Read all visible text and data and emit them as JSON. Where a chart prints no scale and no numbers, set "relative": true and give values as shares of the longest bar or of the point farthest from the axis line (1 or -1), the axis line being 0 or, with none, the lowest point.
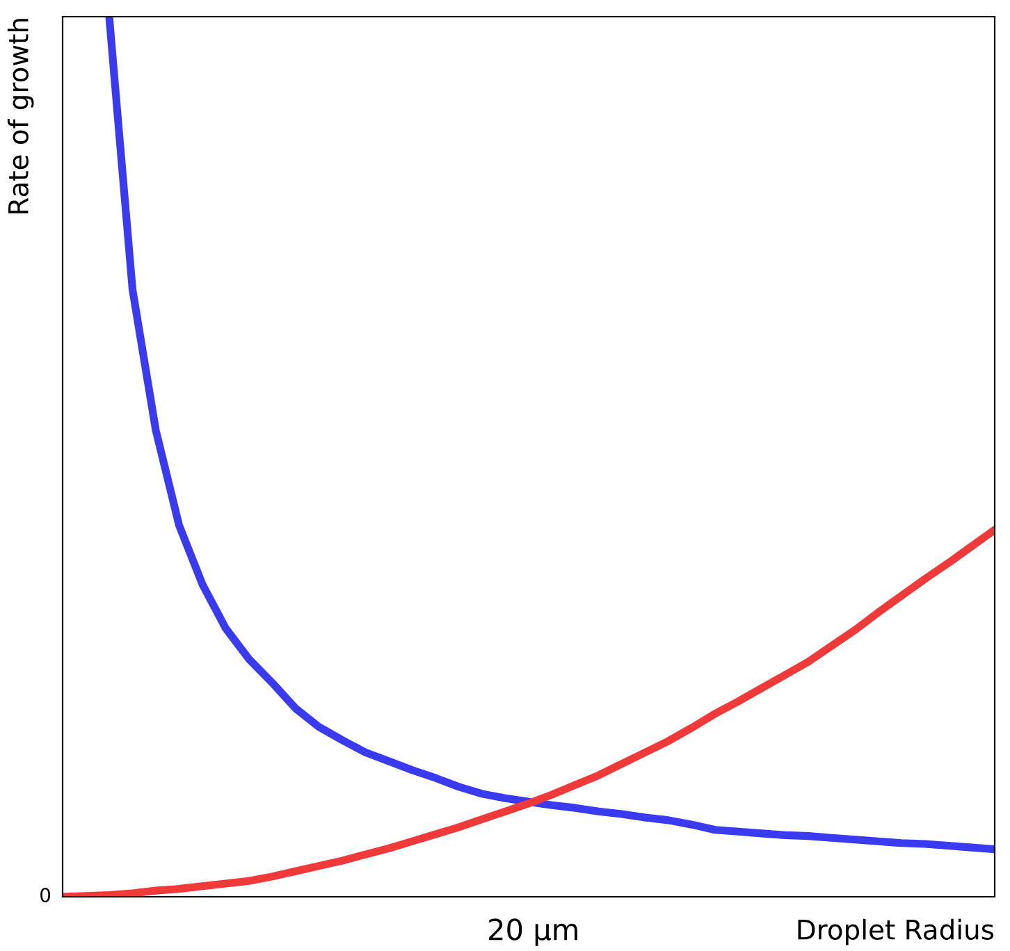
{
  "chart_data": {
    "type": "line",
    "xlabel": "Droplet Radius",
    "ylabel": "Rate of growth",
    "relative": true,
    "annotations": [
      "0",
      "20 μm"
    ],
    "categories": [
      null,
      null,
      null,
      null,
      null,
      null,
      null,
      null,
      null,
      null,
      null,
      null,
      null,
      null,
      null,
      null,
      null,
      null,
      null,
      null,
      null,
      null,
      null,
      null,
      null,
      null,
      null,
      null,
      null,
      null,
      null,
      null,
      null,
      null,
      null,
      null,
      null,
      null,
      null,
      null,
      null
    ],
    "series": [
      {
        "color": "#3a3af0",
        "values": [
          null,
          null,
          1.0,
          0.69,
          0.53,
          0.422,
          0.355,
          0.305,
          0.27,
          0.243,
          0.214,
          0.193,
          0.178,
          0.164,
          0.154,
          0.144,
          0.135,
          0.125,
          0.117,
          0.112,
          0.108,
          0.104,
          0.101,
          0.097,
          0.094,
          0.09,
          0.087,
          0.082,
          0.076,
          0.074,
          0.072,
          0.07,
          0.069,
          0.067,
          0.065,
          0.063,
          0.061,
          0.06,
          0.058,
          0.056,
          0.054
        ]
      },
      {
        "color": "#f03a3a",
        "values": [
          0,
          0.001,
          0.002,
          0.004,
          0.007,
          0.009,
          0.012,
          0.015,
          0.018,
          0.023,
          0.029,
          0.035,
          0.041,
          0.048,
          0.055,
          0.063,
          0.071,
          0.079,
          0.088,
          0.097,
          0.106,
          0.116,
          0.127,
          0.138,
          0.151,
          0.164,
          0.177,
          0.192,
          0.208,
          0.222,
          0.237,
          0.252,
          0.267,
          0.285,
          0.303,
          0.323,
          0.342,
          0.361,
          0.379,
          0.398,
          0.417
        ]
      }
    ]
  }
}
